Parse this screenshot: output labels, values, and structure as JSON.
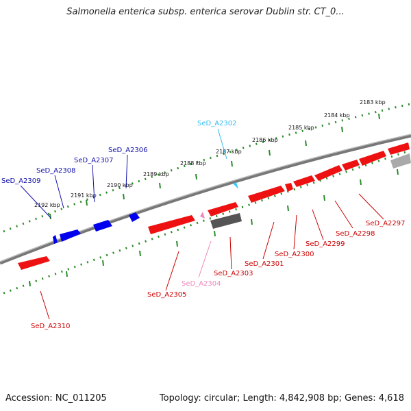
{
  "title": "Salmonella enterica subsp. enterica serovar Dublin str. CT_0...",
  "footer": {
    "accession": "Accession: NC_011205",
    "stats": "Topology: circular; Length: 4,842,908 bp; Genes: 4,618"
  },
  "ticks": [
    "2183 kbp",
    "2184 kbp",
    "2185 kbp",
    "2186 kbp",
    "2187 kbp",
    "2188 kbp",
    "2189 kbp",
    "2190 kbp",
    "2191 kbp",
    "2192 kbp"
  ],
  "genes": [
    {
      "label": "SeD_A2302",
      "color": "#33bbee"
    },
    {
      "label": "SeD_A2306",
      "color": "#1111aa"
    },
    {
      "label": "SeD_A2307",
      "color": "#1111aa"
    },
    {
      "label": "SeD_A2308",
      "color": "#1111aa"
    },
    {
      "label": "SeD_A2309",
      "color": "#1111aa"
    },
    {
      "label": "SeD_A2297",
      "color": "#cc0000"
    },
    {
      "label": "SeD_A2298",
      "color": "#cc0000"
    },
    {
      "label": "SeD_A2299",
      "color": "#cc0000"
    },
    {
      "label": "SeD_A2300",
      "color": "#cc0000"
    },
    {
      "label": "SeD_A2301",
      "color": "#cc0000"
    },
    {
      "label": "SeD_A2303",
      "color": "#cc0000"
    },
    {
      "label": "SeD_A2304",
      "color": "#ee88bb"
    },
    {
      "label": "SeD_A2305",
      "color": "#cc0000"
    },
    {
      "label": "SeD_A2310",
      "color": "#cc0000"
    }
  ],
  "colors": {
    "forward": "#ff0000",
    "reverse_blue": "#0000ee",
    "scale": "#2a8a2a",
    "backbone": "#777777",
    "cyan": "#33ccff",
    "pink": "#ee88bb",
    "gray": "#555555"
  }
}
